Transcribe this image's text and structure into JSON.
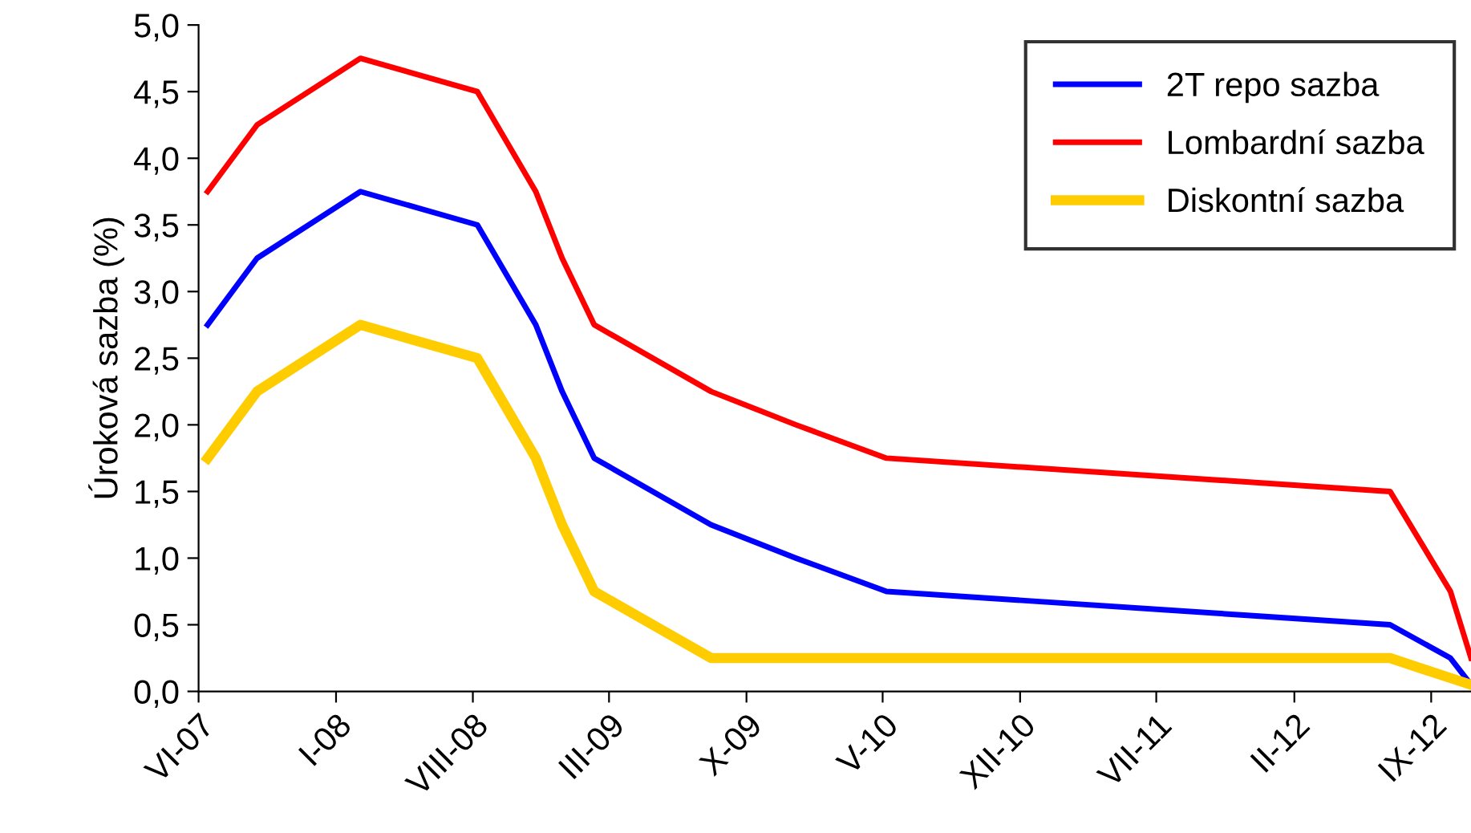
{
  "chart_data": {
    "type": "line",
    "ylabel": "Úroková sazba (%)",
    "x": [
      "2007-06-15",
      "2007-08-31",
      "2008-02-08",
      "2008-08-08",
      "2008-11-07",
      "2008-12-18",
      "2009-02-06",
      "2009-08-07",
      "2009-12-17",
      "2010-05-07",
      "2012-06-29",
      "2012-10-01",
      "2012-11-02"
    ],
    "series": [
      {
        "name": "2T repo sazba",
        "color": "#0000ff",
        "values": [
          2.75,
          3.25,
          3.75,
          3.5,
          2.75,
          2.25,
          1.75,
          1.25,
          1.0,
          0.75,
          0.5,
          0.25,
          0.05
        ]
      },
      {
        "name": "Lombardní sazba",
        "color": "#ff0000",
        "values": [
          3.75,
          4.25,
          4.75,
          4.5,
          3.75,
          3.25,
          2.75,
          2.25,
          2.0,
          1.75,
          1.5,
          0.75,
          0.25
        ]
      },
      {
        "name": "Diskontní sazba",
        "color": "#ffcc00",
        "values": [
          1.75,
          2.25,
          2.75,
          2.5,
          1.75,
          1.25,
          0.75,
          0.25,
          0.25,
          0.25,
          0.25,
          0.1,
          0.05
        ]
      }
    ],
    "xlim": [
      "2007-06-01",
      "2012-11-02"
    ],
    "xticks": [
      {
        "value": "2007-06-01",
        "label": "VI-07"
      },
      {
        "value": "2008-01-01",
        "label": "I-08"
      },
      {
        "value": "2008-08-01",
        "label": "VIII-08"
      },
      {
        "value": "2009-03-01",
        "label": "III-09"
      },
      {
        "value": "2009-10-01",
        "label": "X-09"
      },
      {
        "value": "2010-05-01",
        "label": "V-10"
      },
      {
        "value": "2010-12-01",
        "label": "XII-10"
      },
      {
        "value": "2011-07-01",
        "label": "VII-11"
      },
      {
        "value": "2012-02-01",
        "label": "II-12"
      },
      {
        "value": "2012-09-01",
        "label": "IX-12"
      }
    ],
    "ylim": [
      0,
      5
    ],
    "yticks": [
      {
        "value": 0,
        "label": "0,0"
      },
      {
        "value": 0.5,
        "label": "0,5"
      },
      {
        "value": 1,
        "label": "1,0"
      },
      {
        "value": 1.5,
        "label": "1,5"
      },
      {
        "value": 2,
        "label": "2,0"
      },
      {
        "value": 2.5,
        "label": "2,5"
      },
      {
        "value": 3,
        "label": "3,0"
      },
      {
        "value": 3.5,
        "label": "3,5"
      },
      {
        "value": 4,
        "label": "4,0"
      },
      {
        "value": 4.5,
        "label": "4,5"
      },
      {
        "value": 5,
        "label": "5,0"
      }
    ],
    "grid": false,
    "legend": "top right",
    "marker": "none",
    "line_style": "solid"
  }
}
